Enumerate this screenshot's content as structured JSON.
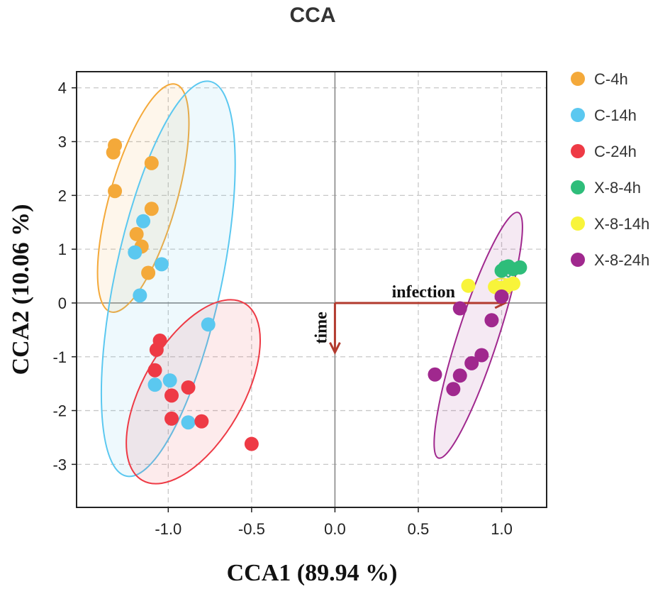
{
  "chart_data": {
    "type": "scatter",
    "title": "CCA",
    "xlabel": "CCA1 (89.94 %)",
    "ylabel": "CCA2 (10.06 %)",
    "xlim": [
      -1.55,
      1.27
    ],
    "ylim": [
      -3.8,
      4.3
    ],
    "xticks": [
      -1.0,
      -0.5,
      0.0,
      0.5,
      1.0
    ],
    "xtick_labels": [
      "-1.0",
      "-0.5",
      "0.0",
      "0.5",
      "1.0"
    ],
    "yticks": [
      4,
      3,
      2,
      1,
      0,
      -1,
      -2,
      -3
    ],
    "ytick_labels": [
      "4",
      "3",
      "2",
      "1",
      "0",
      "-1",
      "-2",
      "-3"
    ],
    "grid": true,
    "legend_position": "right",
    "series": [
      {
        "name": "C-4h",
        "color": "#F4A93A",
        "ellipse": {
          "cx": -1.15,
          "cy": 1.95,
          "rx": 2.2,
          "ry": 0.2,
          "angle_deg": 74
        },
        "points": [
          [
            -1.32,
            2.93
          ],
          [
            -1.33,
            2.8
          ],
          [
            -1.1,
            2.6
          ],
          [
            -1.32,
            2.08
          ],
          [
            -1.1,
            1.75
          ],
          [
            -1.19,
            1.28
          ],
          [
            -1.16,
            1.05
          ],
          [
            -1.12,
            0.56
          ]
        ]
      },
      {
        "name": "C-14h",
        "color": "#5BC8F0",
        "ellipse": {
          "cx": -1.0,
          "cy": 0.45,
          "rx": 3.75,
          "ry": 0.32,
          "angle_deg": 78
        },
        "points": [
          [
            -1.15,
            1.52
          ],
          [
            -1.2,
            0.94
          ],
          [
            -1.04,
            0.72
          ],
          [
            -1.17,
            0.14
          ],
          [
            -0.76,
            -0.4
          ],
          [
            -0.99,
            -1.44
          ],
          [
            -1.08,
            -1.52
          ],
          [
            -0.88,
            -2.22
          ]
        ]
      },
      {
        "name": "C-24h",
        "color": "#EE3A45",
        "ellipse": {
          "cx": -0.85,
          "cy": -1.65,
          "rx": 1.9,
          "ry": 0.3,
          "angle_deg": 60
        },
        "points": [
          [
            -1.05,
            -0.7
          ],
          [
            -1.07,
            -0.87
          ],
          [
            -1.08,
            -1.25
          ],
          [
            -0.98,
            -1.72
          ],
          [
            -0.88,
            -1.57
          ],
          [
            -0.98,
            -2.15
          ],
          [
            -0.8,
            -2.2
          ],
          [
            -0.5,
            -2.62
          ]
        ]
      },
      {
        "name": "X-8-4h",
        "color": "#2EBD7A",
        "ellipse": {
          "cx": 1.04,
          "cy": 0.64,
          "rx": 0.06,
          "ry": 0.05,
          "angle_deg": 0
        },
        "points": [
          [
            1.02,
            0.66
          ],
          [
            1.04,
            0.68
          ],
          [
            1.07,
            0.63
          ],
          [
            1.11,
            0.66
          ],
          [
            1.0,
            0.6
          ]
        ]
      },
      {
        "name": "X-8-14h",
        "color": "#F8F43A",
        "ellipse": {
          "cx": 1.0,
          "cy": 0.3,
          "rx": 0.22,
          "ry": 0.05,
          "angle_deg": 0
        },
        "points": [
          [
            0.8,
            0.32
          ],
          [
            0.96,
            0.3
          ],
          [
            1.0,
            0.28
          ],
          [
            1.04,
            0.33
          ],
          [
            1.07,
            0.36
          ]
        ]
      },
      {
        "name": "X-8-24h",
        "color": "#A0288E",
        "ellipse": {
          "cx": 0.86,
          "cy": -0.6,
          "rx": 2.4,
          "ry": 0.12,
          "angle_deg": 72
        },
        "points": [
          [
            1.0,
            0.12
          ],
          [
            0.75,
            -0.1
          ],
          [
            0.94,
            -0.32
          ],
          [
            0.88,
            -0.97
          ],
          [
            0.82,
            -1.12
          ],
          [
            0.6,
            -1.33
          ],
          [
            0.75,
            -1.35
          ],
          [
            0.71,
            -1.6
          ]
        ]
      }
    ],
    "annotations": [
      {
        "label": "infection",
        "from": [
          0.0,
          0.0
        ],
        "to": [
          1.02,
          0.0
        ],
        "color": "#B23A2E"
      },
      {
        "label": "time",
        "from": [
          0.0,
          0.0
        ],
        "to": [
          0.0,
          -0.92
        ],
        "color": "#B23A2E"
      }
    ]
  }
}
